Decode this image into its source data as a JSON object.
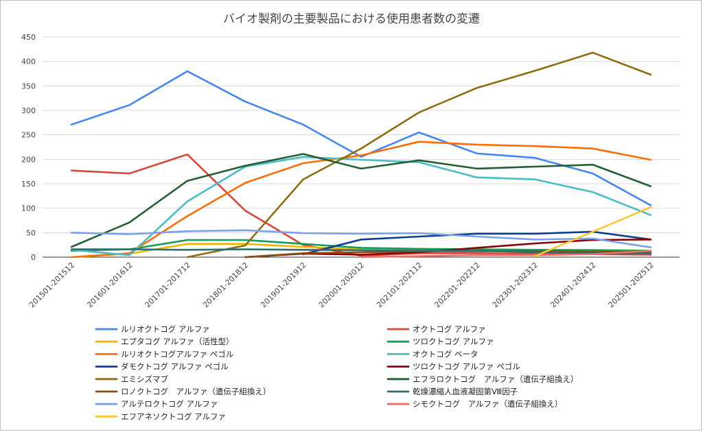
{
  "chart_data": {
    "type": "line",
    "title": "バイオ製剤の主要製品における使用患者数の変遷",
    "xlabel": "",
    "ylabel": "",
    "ylim": [
      0,
      450
    ],
    "y_ticks": [
      0,
      50,
      100,
      150,
      200,
      250,
      300,
      350,
      400,
      450
    ],
    "grid": true,
    "legend_position": "bottom",
    "categories": [
      "201501-201512",
      "201601-201612",
      "201701-201712",
      "201801-201812",
      "201901-201912",
      "202001-202012",
      "202101-202112",
      "202201-202212",
      "202301-202312",
      "202401-202412",
      "202501-202512"
    ],
    "series": [
      {
        "name": "ルリオクトコグ アルファ",
        "color": "#4285f4",
        "values": [
          271,
          311,
          380,
          318,
          271,
          205,
          255,
          212,
          203,
          171,
          106
        ]
      },
      {
        "name": "オクトコグ アルファ",
        "color": "#db4437",
        "values": [
          177,
          171,
          210,
          95,
          25,
          3,
          8,
          8,
          7,
          6,
          5
        ]
      },
      {
        "name": "エプタコグ アルファ（活性型）",
        "color": "#f4b400",
        "values": [
          0,
          7,
          27,
          27,
          21,
          16,
          15,
          15,
          15,
          15,
          13
        ]
      },
      {
        "name": "ツロクトコグ アルファ",
        "color": "#0f9d58",
        "values": [
          13,
          16,
          35,
          35,
          27,
          19,
          17,
          16,
          15,
          14,
          13
        ]
      },
      {
        "name": "ルリオクトコグアルファ ペゴル",
        "color": "#ff6d01",
        "values": [
          0,
          8,
          84,
          152,
          192,
          208,
          236,
          230,
          227,
          222,
          199
        ]
      },
      {
        "name": "オクトコグ ベータ",
        "color": "#46bdc6",
        "values": [
          15,
          4,
          114,
          185,
          205,
          199,
          194,
          163,
          159,
          133,
          86
        ]
      },
      {
        "name": "ダモクトコグ アルファ ペゴル",
        "color": "#0b3d91",
        "values": [
          null,
          null,
          null,
          null,
          6,
          36,
          42,
          48,
          48,
          52,
          36
        ]
      },
      {
        "name": "ツロクトコグ アルファ ペゴル",
        "color": "#8b0000",
        "values": [
          null,
          null,
          null,
          0,
          7,
          5,
          10,
          19,
          28,
          35,
          36
        ]
      },
      {
        "name": "エミシズマブ",
        "color": "#8c6d0e",
        "values": [
          null,
          null,
          0,
          24,
          159,
          222,
          296,
          346,
          381,
          418,
          373
        ]
      },
      {
        "name": "エフラロクトコグ　アルファ（遺伝子組換え）",
        "color": "#215f32",
        "values": [
          21,
          71,
          156,
          187,
          211,
          181,
          198,
          181,
          185,
          189,
          145
        ]
      },
      {
        "name": "ロノクトコグ　アルファ（遺伝子組換え）",
        "color": "#8a4b0f",
        "values": [
          null,
          null,
          null,
          0,
          8,
          10,
          12,
          12,
          12,
          11,
          10
        ]
      },
      {
        "name": "乾燥濃縮人血液凝固第Ⅷ因子",
        "color": "#2e6e6e",
        "values": [
          16,
          16,
          15,
          16,
          15,
          14,
          13,
          13,
          10,
          8,
          8
        ]
      },
      {
        "name": "アルテロクトコグ アルファ",
        "color": "#7b9ff0",
        "values": [
          50,
          47,
          53,
          55,
          49,
          48,
          49,
          42,
          36,
          38,
          20
        ]
      },
      {
        "name": "シモクトコグ　アルファ（遺伝子組換え）",
        "color": "#e8716a",
        "values": [
          null,
          null,
          null,
          null,
          null,
          0,
          2,
          4,
          4,
          6,
          13
        ]
      },
      {
        "name": "エフアネソクトコグ アルファ",
        "color": "#fbc531",
        "values": [
          null,
          null,
          null,
          null,
          null,
          null,
          null,
          null,
          2,
          52,
          102
        ]
      }
    ]
  }
}
